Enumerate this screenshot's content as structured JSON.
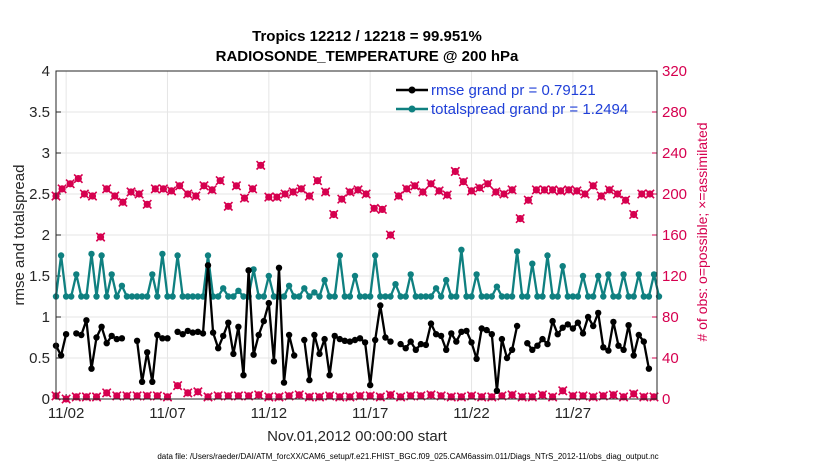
{
  "chart_data": {
    "type": "line",
    "title": [
      "Tropics 12212 / 12218 = 99.951%",
      "RADIOSONDE_TEMPERATURE @ 200 hPa"
    ],
    "xlabel": "Nov.01,2012 00:00:00 start",
    "ylabel_left": "rmse and totalspread",
    "ylabel_right": "# of obs: o=possible; ×=assimilated",
    "ylim_left": [
      0,
      4
    ],
    "ylim_right": [
      0,
      320
    ],
    "xlim": [
      1.5,
      31.15
    ],
    "yticks_left": [
      "0",
      "0.5",
      "1",
      "1.5",
      "2",
      "2.5",
      "3",
      "3.5",
      "4"
    ],
    "yticks_right": [
      "0",
      "40",
      "80",
      "120",
      "160",
      "200",
      "240",
      "280",
      "320"
    ],
    "xticks": [
      {
        "value": 2,
        "label": "11/02"
      },
      {
        "value": 7,
        "label": "11/07"
      },
      {
        "value": 12,
        "label": "11/12"
      },
      {
        "value": 17,
        "label": "11/17"
      },
      {
        "value": 22,
        "label": "11/22"
      },
      {
        "value": 27,
        "label": "11/27"
      }
    ],
    "footer": "data file: /Users/raeder/DAI/ATM_forcXX/CAM6_setup/f.e21.FHIST_BGC.f09_025.CAM6assim.011/Diags_NTrS_2012-11/obs_diag_output.nc",
    "colors": {
      "rmse": "#000000",
      "spread": "#0f8080",
      "obs": "#d6004f",
      "grid": "#e6e6e6",
      "legend_text": "#1f3fd8"
    },
    "series": [
      {
        "name": "rmse grand pr = 0.79121",
        "axis": "left",
        "values": [
          0.65,
          0.53,
          0.79,
          null,
          0.8,
          0.78,
          0.96,
          0.37,
          0.75,
          0.88,
          0.68,
          0.77,
          0.73,
          0.74,
          null,
          null,
          0.71,
          0.21,
          0.57,
          0.21,
          0.78,
          0.74,
          0.74,
          null,
          0.82,
          0.79,
          0.83,
          0.81,
          0.82,
          0.8,
          1.63,
          0.81,
          0.62,
          0.77,
          0.93,
          0.55,
          0.88,
          0.29,
          1.57,
          0.54,
          0.78,
          0.95,
          1.17,
          0.46,
          1.6,
          0.2,
          0.78,
          0.53,
          null,
          0.72,
          0.23,
          0.78,
          0.55,
          0.73,
          0.29,
          0.77,
          0.73,
          0.71,
          0.7,
          0.72,
          0.74,
          0.69,
          0.17,
          0.72,
          1.14,
          0.75,
          0.7,
          null,
          0.67,
          0.62,
          0.7,
          0.6,
          0.67,
          0.66,
          0.92,
          0.79,
          0.77,
          0.6,
          0.8,
          0.7,
          0.82,
          0.83,
          0.69,
          0.49,
          0.86,
          0.84,
          0.79,
          0.1,
          0.73,
          0.5,
          0.6,
          0.89,
          null,
          0.68,
          0.6,
          0.65,
          0.73,
          0.67,
          0.95,
          0.79,
          0.87,
          0.91,
          0.86,
          0.93,
          0.8,
          1.0,
          0.89,
          1.05,
          0.63,
          0.59,
          0.94,
          0.65,
          0.6,
          0.9,
          0.53,
          0.78,
          0.7,
          0.37
        ],
        "start_day": 1.5,
        "step_days": 0.25
      },
      {
        "name": "totalspread grand pr = 1.2494",
        "axis": "left",
        "values": [
          1.25,
          1.75,
          1.25,
          1.25,
          1.52,
          1.25,
          1.25,
          1.77,
          1.25,
          1.75,
          1.25,
          1.52,
          1.25,
          1.38,
          1.25,
          1.25,
          1.25,
          1.25,
          1.25,
          1.52,
          1.25,
          1.77,
          1.25,
          1.25,
          1.75,
          1.25,
          1.25,
          1.25,
          1.25,
          1.25,
          1.75,
          1.25,
          1.25,
          1.35,
          1.25,
          1.25,
          1.32,
          1.25,
          1.25,
          1.58,
          1.25,
          1.25,
          1.5,
          1.25,
          1.25,
          1.25,
          1.38,
          1.25,
          1.25,
          1.35,
          1.25,
          1.3,
          1.25,
          1.45,
          1.25,
          1.25,
          1.75,
          1.25,
          1.25,
          1.5,
          1.25,
          1.25,
          1.25,
          1.75,
          1.25,
          1.25,
          1.25,
          1.4,
          1.25,
          1.25,
          1.52,
          1.25,
          1.25,
          1.25,
          1.25,
          1.35,
          1.25,
          1.45,
          1.25,
          1.25,
          1.82,
          1.25,
          1.25,
          1.52,
          1.25,
          1.25,
          1.25,
          1.37,
          1.25,
          1.25,
          1.25,
          1.8,
          1.25,
          1.25,
          1.65,
          1.25,
          1.25,
          1.75,
          1.25,
          1.25,
          1.62,
          1.25,
          1.25,
          1.25,
          1.5,
          1.25,
          1.25,
          1.5,
          1.25,
          1.52,
          1.25,
          1.25,
          1.52,
          1.25,
          1.25,
          1.52,
          1.25,
          1.25,
          1.52,
          1.25
        ],
        "start_day": 1.5,
        "step_days": 0.25
      },
      {
        "name": "possible",
        "axis": "right",
        "marker": "o",
        "values": [
          3,
          2,
          0,
          2,
          2,
          3,
          2,
          4,
          2,
          3,
          6,
          2,
          3,
          2,
          3,
          2,
          3,
          2,
          3,
          2,
          3,
          2,
          2,
          3,
          13,
          2,
          6,
          3,
          7,
          3,
          2,
          5,
          3,
          2,
          3,
          4,
          3,
          2,
          3,
          3,
          4,
          3,
          2,
          3,
          2,
          3,
          3,
          2,
          4,
          3,
          2,
          3,
          2,
          3,
          3,
          2,
          2,
          3,
          2,
          3,
          3,
          2,
          3,
          3,
          2,
          3,
          4,
          3,
          2,
          2,
          3,
          2,
          3,
          3,
          4,
          2,
          3,
          2,
          2,
          3,
          2,
          3,
          3,
          2,
          2,
          3,
          2,
          5,
          3,
          3,
          4,
          3,
          2,
          3,
          2,
          3,
          4,
          3,
          2,
          2,
          8,
          3,
          3,
          4,
          3,
          3,
          2,
          5,
          3,
          3,
          4,
          3,
          2,
          2,
          5,
          3,
          2,
          3,
          2,
          3
        ],
        "start_day": 1.5,
        "step_days": 0.25
      },
      {
        "name": "assimilated",
        "axis": "right",
        "marker": "x",
        "values": [
          null,
          null,
          null,
          null,
          null,
          null,
          null,
          null,
          null,
          null,
          null,
          null,
          null,
          null,
          null,
          null,
          null,
          null,
          null,
          null,
          null,
          null,
          null,
          null,
          null,
          null,
          null,
          null,
          null,
          null,
          null,
          null,
          null,
          null,
          null,
          null,
          null,
          null,
          null,
          null,
          null,
          null,
          null,
          null,
          null,
          null,
          null,
          null,
          null,
          null,
          null,
          null,
          null,
          null,
          null,
          null,
          null,
          null,
          null,
          null,
          null,
          null,
          null,
          null,
          null,
          null,
          null,
          null,
          null,
          null,
          null,
          null,
          null,
          null,
          null,
          null,
          null,
          null,
          null,
          null,
          null,
          null,
          null,
          null,
          null,
          null,
          null,
          null,
          null,
          null,
          null,
          null,
          null,
          null,
          null,
          null,
          null,
          null,
          null,
          null,
          null,
          null,
          null,
          null,
          null,
          null,
          null,
          null,
          null,
          null,
          null,
          null,
          null,
          null,
          null,
          null,
          null,
          null,
          null,
          null
        ]
      },
      {
        "name": "possible_upper",
        "axis": "right",
        "marker": "o",
        "points": [
          [
            1.5,
            198
          ],
          [
            1.8,
            205
          ],
          [
            2.2,
            210
          ],
          [
            2.6,
            215
          ],
          [
            2.9,
            200
          ],
          [
            3.3,
            198
          ],
          [
            3.7,
            158
          ],
          [
            4.0,
            205
          ],
          [
            4.4,
            198
          ],
          [
            4.8,
            192
          ],
          [
            5.2,
            202
          ],
          [
            5.6,
            200
          ],
          [
            6.0,
            190
          ],
          [
            6.4,
            205
          ],
          [
            6.8,
            205
          ],
          [
            7.2,
            203
          ],
          [
            7.6,
            208
          ],
          [
            8.0,
            200
          ],
          [
            8.4,
            198
          ],
          [
            8.8,
            208
          ],
          [
            9.2,
            204
          ],
          [
            9.6,
            213
          ],
          [
            10.0,
            188
          ],
          [
            10.4,
            208
          ],
          [
            10.8,
            196
          ],
          [
            11.2,
            205
          ],
          [
            11.6,
            228
          ],
          [
            12.0,
            197
          ],
          [
            12.4,
            197
          ],
          [
            12.8,
            200
          ],
          [
            13.2,
            202
          ],
          [
            13.6,
            205
          ],
          [
            14.0,
            198
          ],
          [
            14.4,
            213
          ],
          [
            14.8,
            202
          ],
          [
            15.2,
            180
          ],
          [
            15.6,
            195
          ],
          [
            16.0,
            202
          ],
          [
            16.4,
            204
          ],
          [
            16.8,
            200
          ],
          [
            17.2,
            186
          ],
          [
            17.6,
            185
          ],
          [
            18.0,
            160
          ],
          [
            18.4,
            198
          ],
          [
            18.8,
            205
          ],
          [
            19.2,
            208
          ],
          [
            19.6,
            202
          ],
          [
            20.0,
            210
          ],
          [
            20.4,
            203
          ],
          [
            20.8,
            199
          ],
          [
            21.2,
            222
          ],
          [
            21.6,
            212
          ],
          [
            22.0,
            203
          ],
          [
            22.4,
            206
          ],
          [
            22.8,
            210
          ],
          [
            23.2,
            202
          ],
          [
            23.6,
            200
          ],
          [
            24.0,
            204
          ],
          [
            24.4,
            176
          ],
          [
            24.8,
            194
          ],
          [
            25.2,
            204
          ],
          [
            25.6,
            204
          ],
          [
            26.0,
            204
          ],
          [
            26.4,
            203
          ],
          [
            26.8,
            204
          ],
          [
            27.2,
            203
          ],
          [
            27.6,
            200
          ],
          [
            28.0,
            208
          ],
          [
            28.4,
            198
          ],
          [
            28.8,
            204
          ],
          [
            29.2,
            200
          ],
          [
            29.6,
            194
          ],
          [
            30.0,
            180
          ],
          [
            30.4,
            200
          ],
          [
            30.8,
            200
          ]
        ]
      }
    ]
  }
}
